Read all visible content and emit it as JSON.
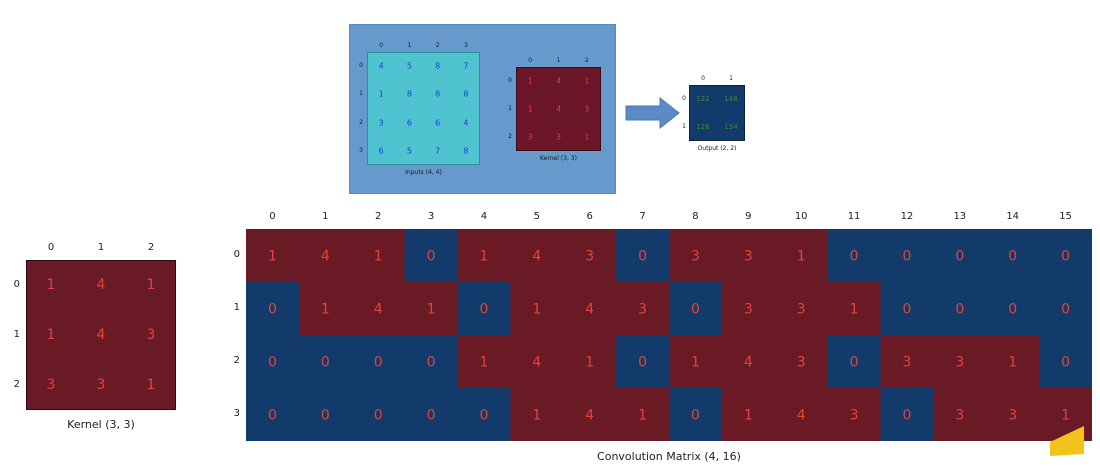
{
  "top_panel": {
    "inputs": {
      "caption": "Inputs (4, 4)",
      "col_ticks": [
        "0",
        "1",
        "2",
        "3"
      ],
      "row_ticks": [
        "0",
        "1",
        "2",
        "3"
      ],
      "values": [
        [
          4,
          5,
          8,
          7
        ],
        [
          1,
          8,
          8,
          8
        ],
        [
          3,
          6,
          6,
          4
        ],
        [
          6,
          5,
          7,
          8
        ]
      ],
      "color": "#4fc3cf",
      "text_color": "#1e40c8"
    },
    "kernel": {
      "caption": "Kernel (3, 3)",
      "col_ticks": [
        "0",
        "1",
        "2"
      ],
      "row_ticks": [
        "0",
        "1",
        "2"
      ],
      "values": [
        [
          1,
          4,
          1
        ],
        [
          1,
          4,
          3
        ],
        [
          3,
          3,
          1
        ]
      ],
      "color": "#6a1528",
      "text_color": "#e0403a"
    },
    "output": {
      "caption": "Output (2, 2)",
      "col_ticks": [
        "0",
        "1"
      ],
      "row_ticks": [
        "0",
        "1"
      ],
      "values": [
        [
          122,
          148
        ],
        [
          126,
          134
        ]
      ],
      "color": "#123a6b",
      "text_color": "#3a8a3a"
    },
    "panel_color": "#6699cc",
    "arrow_color": "#5b8ac4"
  },
  "kernel_large": {
    "caption": "Kernel (3, 3)",
    "col_ticks": [
      "0",
      "1",
      "2"
    ],
    "row_ticks": [
      "0",
      "1",
      "2"
    ],
    "values": [
      [
        1,
        4,
        1
      ],
      [
        1,
        4,
        3
      ],
      [
        3,
        3,
        1
      ]
    ],
    "color": "#6a1a25",
    "text_color": "#e0443a"
  },
  "conv_matrix": {
    "caption": "Convolution Matrix (4, 16)",
    "col_ticks": [
      "0",
      "1",
      "2",
      "3",
      "4",
      "5",
      "6",
      "7",
      "8",
      "9",
      "10",
      "11",
      "12",
      "13",
      "14",
      "15"
    ],
    "row_ticks": [
      "0",
      "1",
      "2",
      "3"
    ],
    "values": [
      [
        1,
        4,
        1,
        0,
        1,
        4,
        3,
        0,
        3,
        3,
        1,
        0,
        0,
        0,
        0,
        0
      ],
      [
        0,
        1,
        4,
        1,
        0,
        1,
        4,
        3,
        0,
        3,
        3,
        1,
        0,
        0,
        0,
        0
      ],
      [
        0,
        0,
        0,
        0,
        1,
        4,
        1,
        0,
        1,
        4,
        3,
        0,
        3,
        3,
        1,
        0
      ],
      [
        0,
        0,
        0,
        0,
        0,
        1,
        4,
        1,
        0,
        1,
        4,
        3,
        0,
        3,
        3,
        1
      ]
    ],
    "nonzero_color": "#6a1a25",
    "zero_color": "#123a6b",
    "text_color": "#e0443a"
  },
  "logo_color": "#f2c31b"
}
